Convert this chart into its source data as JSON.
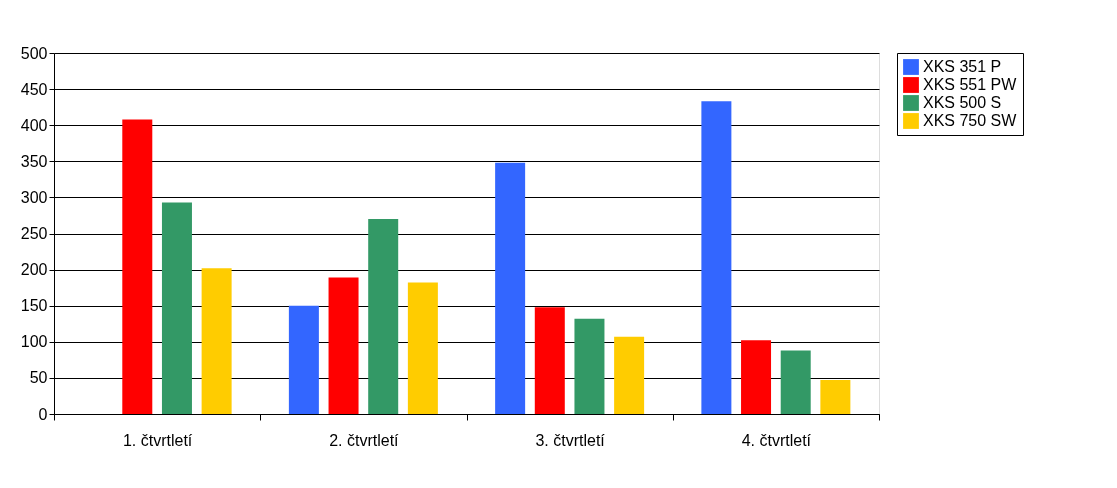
{
  "chart_data": {
    "type": "bar",
    "categories": [
      "1. čtvrtletí",
      "2. čtvrtletí",
      "3. čtvrtletí",
      "4. čtvrtletí"
    ],
    "series": [
      {
        "name": "XKS 351 P",
        "color": "#3366ff",
        "values": [
          null,
          150,
          348,
          433
        ]
      },
      {
        "name": "XKS 551 PW",
        "color": "#ff0000",
        "values": [
          408,
          189,
          148,
          102
        ]
      },
      {
        "name": "XKS 500 S",
        "color": "#339966",
        "values": [
          293,
          270,
          132,
          88
        ]
      },
      {
        "name": "XKS 750 SW",
        "color": "#ffcc00",
        "values": [
          202,
          182,
          107,
          47
        ]
      }
    ],
    "ylim": [
      0,
      500
    ],
    "yticks": [
      0,
      50,
      100,
      150,
      200,
      250,
      300,
      350,
      400,
      450,
      500
    ],
    "grid": "y",
    "legend": "right"
  }
}
